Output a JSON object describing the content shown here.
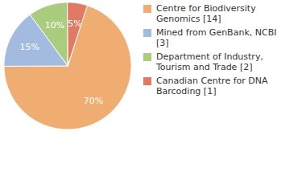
{
  "chart_data": {
    "type": "pie",
    "categories": [
      "Centre for Biodiversity Genomics [14]",
      "Mined from GenBank, NCBI [3]",
      "Department of Industry, Tourism and Trade [2]",
      "Canadian Centre for DNA Barcoding [1]"
    ],
    "values": [
      70,
      15,
      10,
      5
    ],
    "value_labels": [
      "70%",
      "15%",
      "10%",
      "5%"
    ],
    "colors": [
      "#f0ad72",
      "#a3bbe0",
      "#a9cd7c",
      "#e07a62"
    ],
    "data_labels": true,
    "legend": "right"
  }
}
